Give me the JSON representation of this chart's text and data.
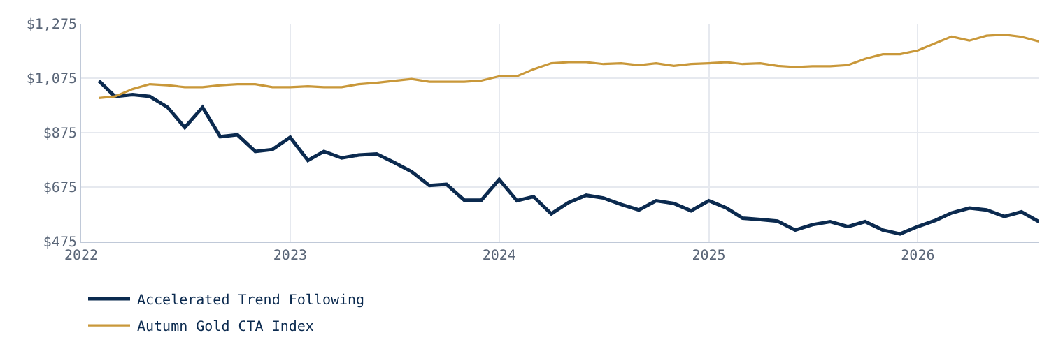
{
  "chart_data": {
    "type": "line",
    "x": [
      "2022-02",
      "2022-03",
      "2022-04",
      "2022-05",
      "2022-06",
      "2022-07",
      "2022-08",
      "2022-09",
      "2022-10",
      "2022-11",
      "2022-12",
      "2023-01",
      "2023-02",
      "2023-03",
      "2023-04",
      "2023-05",
      "2023-06",
      "2023-07",
      "2023-08",
      "2023-09",
      "2023-10",
      "2023-11",
      "2023-12",
      "2024-01",
      "2024-02",
      "2024-03",
      "2024-04",
      "2024-05",
      "2024-06",
      "2024-07",
      "2024-08",
      "2024-09",
      "2024-10",
      "2024-11",
      "2024-12",
      "2025-01",
      "2025-02",
      "2025-03",
      "2025-04",
      "2025-05",
      "2025-06",
      "2025-07",
      "2025-08",
      "2025-09",
      "2025-10",
      "2025-11",
      "2025-12",
      "2026-01",
      "2026-02",
      "2026-03",
      "2026-04",
      "2026-05",
      "2026-06",
      "2026-07",
      "2026-08"
    ],
    "series": [
      {
        "name": "Accelerated Trend Following",
        "color": "#0b2a4f",
        "values": [
          1065,
          1008,
          1015,
          1008,
          968,
          894,
          968,
          860,
          867,
          806,
          813,
          858,
          773,
          806,
          782,
          793,
          797,
          766,
          732,
          681,
          685,
          627,
          627,
          703,
          625,
          640,
          577,
          618,
          645,
          635,
          611,
          591,
          625,
          615,
          588,
          625,
          598,
          561,
          556,
          550,
          517,
          537,
          548,
          530,
          548,
          517,
          503,
          530,
          553,
          580,
          598,
          591,
          567,
          584,
          547
        ]
      },
      {
        "name": "Autumn Gold CTA Index",
        "color": "#c9983a",
        "values": [
          1002,
          1008,
          1035,
          1053,
          1049,
          1042,
          1042,
          1049,
          1053,
          1053,
          1042,
          1042,
          1045,
          1042,
          1042,
          1053,
          1058,
          1065,
          1072,
          1062,
          1062,
          1062,
          1066,
          1082,
          1082,
          1108,
          1130,
          1134,
          1134,
          1127,
          1130,
          1123,
          1130,
          1120,
          1127,
          1130,
          1134,
          1127,
          1130,
          1120,
          1116,
          1119,
          1119,
          1123,
          1146,
          1163,
          1163,
          1177,
          1204,
          1228,
          1213,
          1231,
          1235,
          1227,
          1210
        ]
      }
    ],
    "xlim": [
      "2022-01",
      "2026-08"
    ],
    "xticks": [
      "2022",
      "2023",
      "2024",
      "2025",
      "2026"
    ],
    "ylim": [
      475,
      1275
    ],
    "yticks": [
      {
        "value": 475,
        "label": "$475"
      },
      {
        "value": 675,
        "label": "$675"
      },
      {
        "value": 875,
        "label": "$875"
      },
      {
        "value": 1075,
        "label": "$1,075"
      },
      {
        "value": 1275,
        "label": "$1,275"
      }
    ],
    "grid": true,
    "legend": "bottom",
    "marker": "none",
    "line_style": "solid"
  }
}
